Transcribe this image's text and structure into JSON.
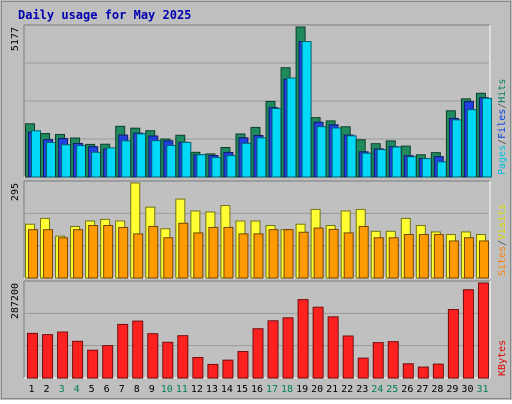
{
  "chart_data": {
    "type": "bar",
    "title": "Daily usage for May 2025",
    "categories": [
      "1",
      "2",
      "3",
      "4",
      "5",
      "6",
      "7",
      "8",
      "9",
      "10",
      "11",
      "12",
      "13",
      "14",
      "15",
      "16",
      "17",
      "18",
      "19",
      "20",
      "21",
      "22",
      "23",
      "24",
      "25",
      "26",
      "27",
      "28",
      "29",
      "30",
      "31"
    ],
    "weekend_days": [
      "3",
      "4",
      "10",
      "11",
      "17",
      "18",
      "24",
      "25",
      "31"
    ],
    "panels": [
      {
        "name": "top",
        "scale_label": "5177",
        "ymax": 5177,
        "right_labels": [
          {
            "text": "Pages",
            "color": "#00c0e0"
          },
          {
            "text": "/",
            "color": "#555555"
          },
          {
            "text": "Files",
            "color": "#0040e0"
          },
          {
            "text": "/",
            "color": "#555555"
          },
          {
            "text": "Hits",
            "color": "#008060"
          }
        ],
        "series": [
          {
            "name": "Hits",
            "color": "#1f8a5e",
            "values": [
              1837,
              1500,
              1469,
              1346,
              1125,
              1132,
              1750,
              1685,
              1598,
              1313,
              1440,
              852,
              798,
              1018,
              1485,
              1712,
              2608,
              3772,
              5177,
              2049,
              1936,
              1734,
              1285,
              1151,
              1245,
              1066,
              767,
              841,
              2286,
              2697,
              2890
            ]
          },
          {
            "name": "Files",
            "color": "#2040e0",
            "values": [
              1546,
              1288,
              1328,
              1156,
              1047,
              967,
              1447,
              1514,
              1415,
              1250,
              1198,
              767,
              742,
              848,
              1352,
              1434,
              2392,
              3372,
              4674,
              1890,
              1802,
              1446,
              870,
              971,
              1048,
              734,
              638,
              703,
              2022,
              2603,
              2738
            ]
          },
          {
            "name": "Pages",
            "color": "#00d8f8",
            "values": [
              1595,
              1191,
              1115,
              1083,
              853,
              1005,
              1250,
              1490,
              1253,
              1087,
              1193,
              768,
              669,
              736,
              1163,
              1353,
              2363,
              3415,
              4674,
              1737,
              1691,
              1420,
              822,
              945,
              1035,
              697,
              633,
              523,
              1971,
              2324,
              2714
            ]
          }
        ]
      },
      {
        "name": "middle",
        "scale_label": "295",
        "ymax": 295,
        "right_labels": [
          {
            "text": "Sites",
            "color": "#ff8000"
          },
          {
            "text": "/",
            "color": "#555555"
          },
          {
            "text": "Visits",
            "color": "#e0e000"
          }
        ],
        "series": [
          {
            "name": "Visits",
            "color": "#ffff33",
            "values": [
              167,
              185,
              130,
              160,
              177,
              182,
              177,
              295,
              220,
              153,
              245,
              208,
              205,
              225,
              177,
              177,
              163,
              150,
              167,
              213,
              163,
              208,
              213,
              145,
              145,
              185,
              163,
              143,
              135,
              143,
              135
            ]
          },
          {
            "name": "Sites",
            "color": "#ff9a00",
            "values": [
              150,
              150,
              125,
              150,
              163,
              163,
              157,
              137,
              160,
              125,
              170,
              140,
              157,
              157,
              137,
              137,
              150,
              150,
              142,
              155,
              151,
              140,
              160,
              125,
              125,
              135,
              135,
              135,
              115,
              125,
              115
            ]
          }
        ]
      },
      {
        "name": "bottom",
        "scale_label": "287200",
        "ymax": 287200,
        "right_labels": [
          {
            "text": "KBytes",
            "color": "#e00000"
          }
        ],
        "series": [
          {
            "name": "KBytes",
            "color": "#ff2020",
            "values": [
              135046,
              131111,
              139000,
              111000,
              84000,
              98000,
              162000,
              172000,
              134000,
              108000,
              128000,
              62000,
              41000,
              54000,
              80000,
              149000,
              173000,
              182000,
              237000,
              214000,
              185000,
              127000,
              60000,
              107000,
              110000,
              43000,
              33000,
              42000,
              207000,
              267000,
              287200
            ]
          }
        ]
      }
    ]
  }
}
